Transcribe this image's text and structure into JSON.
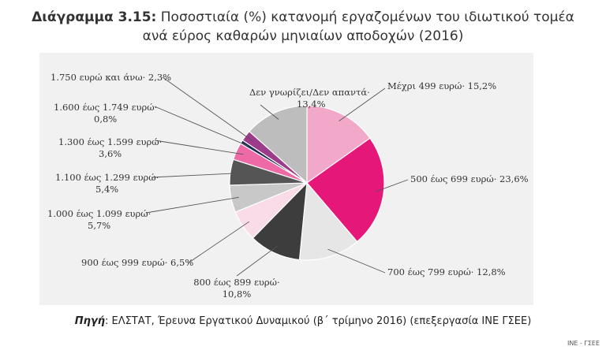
{
  "title": {
    "number": "Διάγραμμα 3.15:",
    "line1": "Ποσοστιαία (%) κατανομή εργαζομένων του ιδιωτικού τομέα",
    "line2": "ανά εύρος καθαρών μηνιαίων αποδοχών (2016)"
  },
  "source": {
    "key": "Πηγή",
    "text": ": ΕΛΣΤΑΤ, Έρευνα Εργατικού Δυναμικού (β΄ τρίμηνο 2016) (επεξεργασία ΙΝΕ ΓΣΕΕ)"
  },
  "watermark": "ΙΝΕ - ΓΣΕΕ",
  "chart_data": {
    "type": "pie",
    "title": "Ποσοστιαία (%) κατανομή εργαζομένων του ιδιωτικού τομέα ανά εύρος καθαρών μηνιαίων αποδοχών (2016)",
    "slices": [
      {
        "name": "Μέχρι 499 ευρώ",
        "value": 15.2,
        "color": "#f2a9c9",
        "label_lines": [
          "Μέχρι 499 ευρώ· 15,2%"
        ]
      },
      {
        "name": "500 έως 699 ευρώ",
        "value": 23.6,
        "color": "#e5187a",
        "label_lines": [
          "500 έως 699 ευρώ· 23,6%"
        ]
      },
      {
        "name": "700 έως 799 ευρώ",
        "value": 12.8,
        "color": "#e6e6e6",
        "label_lines": [
          "700 έως 799 ευρώ· 12,8%"
        ]
      },
      {
        "name": "800 έως 899 ευρώ",
        "value": 10.8,
        "color": "#3d3d3d",
        "label_lines": [
          "800 έως 899 ευρώ·",
          "10,8%"
        ]
      },
      {
        "name": "900 έως 999 ευρώ",
        "value": 6.5,
        "color": "#fadbe8",
        "label_lines": [
          "900 έως 999 ευρώ· 6,5%"
        ]
      },
      {
        "name": "1.000 έως 1.099 ευρώ",
        "value": 5.7,
        "color": "#c8c8c8",
        "label_lines": [
          "1.000 έως 1.099 ευρώ·",
          "5,7%"
        ]
      },
      {
        "name": "1.100 έως 1.299 ευρώ",
        "value": 5.4,
        "color": "#555555",
        "label_lines": [
          "1.100 έως 1.299 ευρώ·",
          "5,4%"
        ]
      },
      {
        "name": "1.300 έως 1.599 ευρώ",
        "value": 3.6,
        "color": "#ee6aa7",
        "label_lines": [
          "1.300 έως 1.599 ευρώ·",
          "3,6%"
        ]
      },
      {
        "name": "1.600 έως 1.749 ευρώ",
        "value": 0.8,
        "color": "#1f2a55",
        "label_lines": [
          "1.600 έως 1.749 ευρώ·",
          "0,8%"
        ]
      },
      {
        "name": "1.750 ευρώ και άνω",
        "value": 2.3,
        "color": "#9b3b8a",
        "label_lines": [
          "1.750 ευρώ και άνω· 2,3%"
        ]
      },
      {
        "name": "Δεν γνωρίζει/Δεν απαντά",
        "value": 13.4,
        "color": "#bdbdbd",
        "label_lines": [
          "Δεν γνωρίζει/Δεν απαντά·",
          "13,4%"
        ]
      }
    ]
  }
}
